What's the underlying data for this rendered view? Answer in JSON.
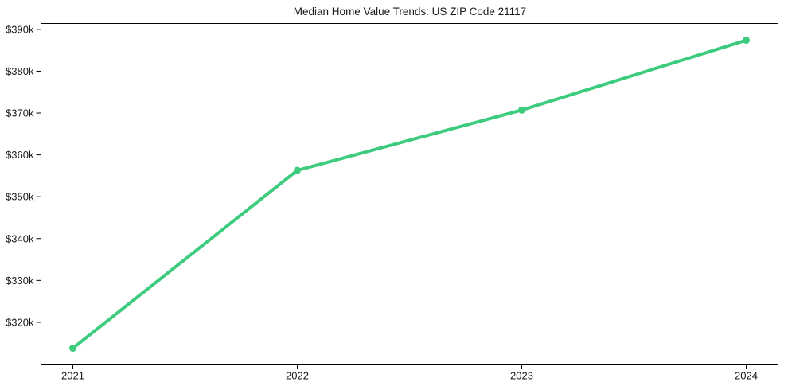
{
  "chart_data": {
    "type": "line",
    "title": "Median Home Value Trends: US ZIP Code 21117",
    "x": [
      "2021",
      "2022",
      "2023",
      "2024"
    ],
    "series": [
      {
        "name": "Median Home Value",
        "values": [
          313800,
          356300,
          370700,
          387400
        ],
        "color": "#3dcc7e",
        "line_width": 4,
        "marker": "circle",
        "marker_radius": 4.5
      }
    ],
    "xlabel": "",
    "ylabel": "",
    "ylim": [
      310000,
      391400
    ],
    "yticks": [
      320000,
      330000,
      340000,
      350000,
      360000,
      370000,
      380000,
      390000
    ],
    "ytick_prefix": "$",
    "ytick_suffix": "k",
    "grid": false,
    "legend_position": "none",
    "axis_color": "#000000",
    "text_color": "#1a1a1a",
    "background_color": "#ffffff"
  }
}
